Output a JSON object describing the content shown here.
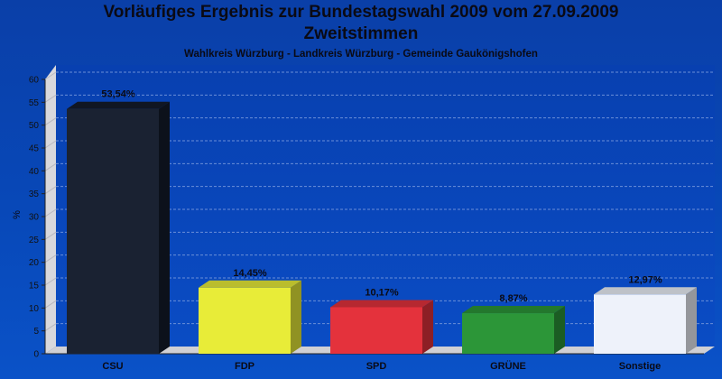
{
  "title": "Vorläufiges Ergebnis zur Bundestagswahl 2009 vom 27.09.2009",
  "subtitle": "Zweitstimmen",
  "region": "Wahlkreis Würzburg - Landkreis Würzburg - Gemeinde Gaukönigshofen",
  "chart_data": {
    "type": "bar",
    "categories": [
      "CSU",
      "FDP",
      "SPD",
      "GRÜNE",
      "Sonstige"
    ],
    "values": [
      53.54,
      14.45,
      10.17,
      8.87,
      12.97
    ],
    "value_labels": [
      "53,54%",
      "14,45%",
      "10,17%",
      "8,87%",
      "12,97%"
    ],
    "colors": [
      "#141c2c",
      "#e8ec38",
      "#e4323c",
      "#2c9638",
      "#eef2fa"
    ],
    "ylabel": "%",
    "ylim": [
      0,
      60
    ],
    "yticks": [
      0,
      5,
      10,
      15,
      20,
      25,
      30,
      35,
      40,
      45,
      50,
      55,
      60
    ],
    "grid": true,
    "legend": "none"
  }
}
